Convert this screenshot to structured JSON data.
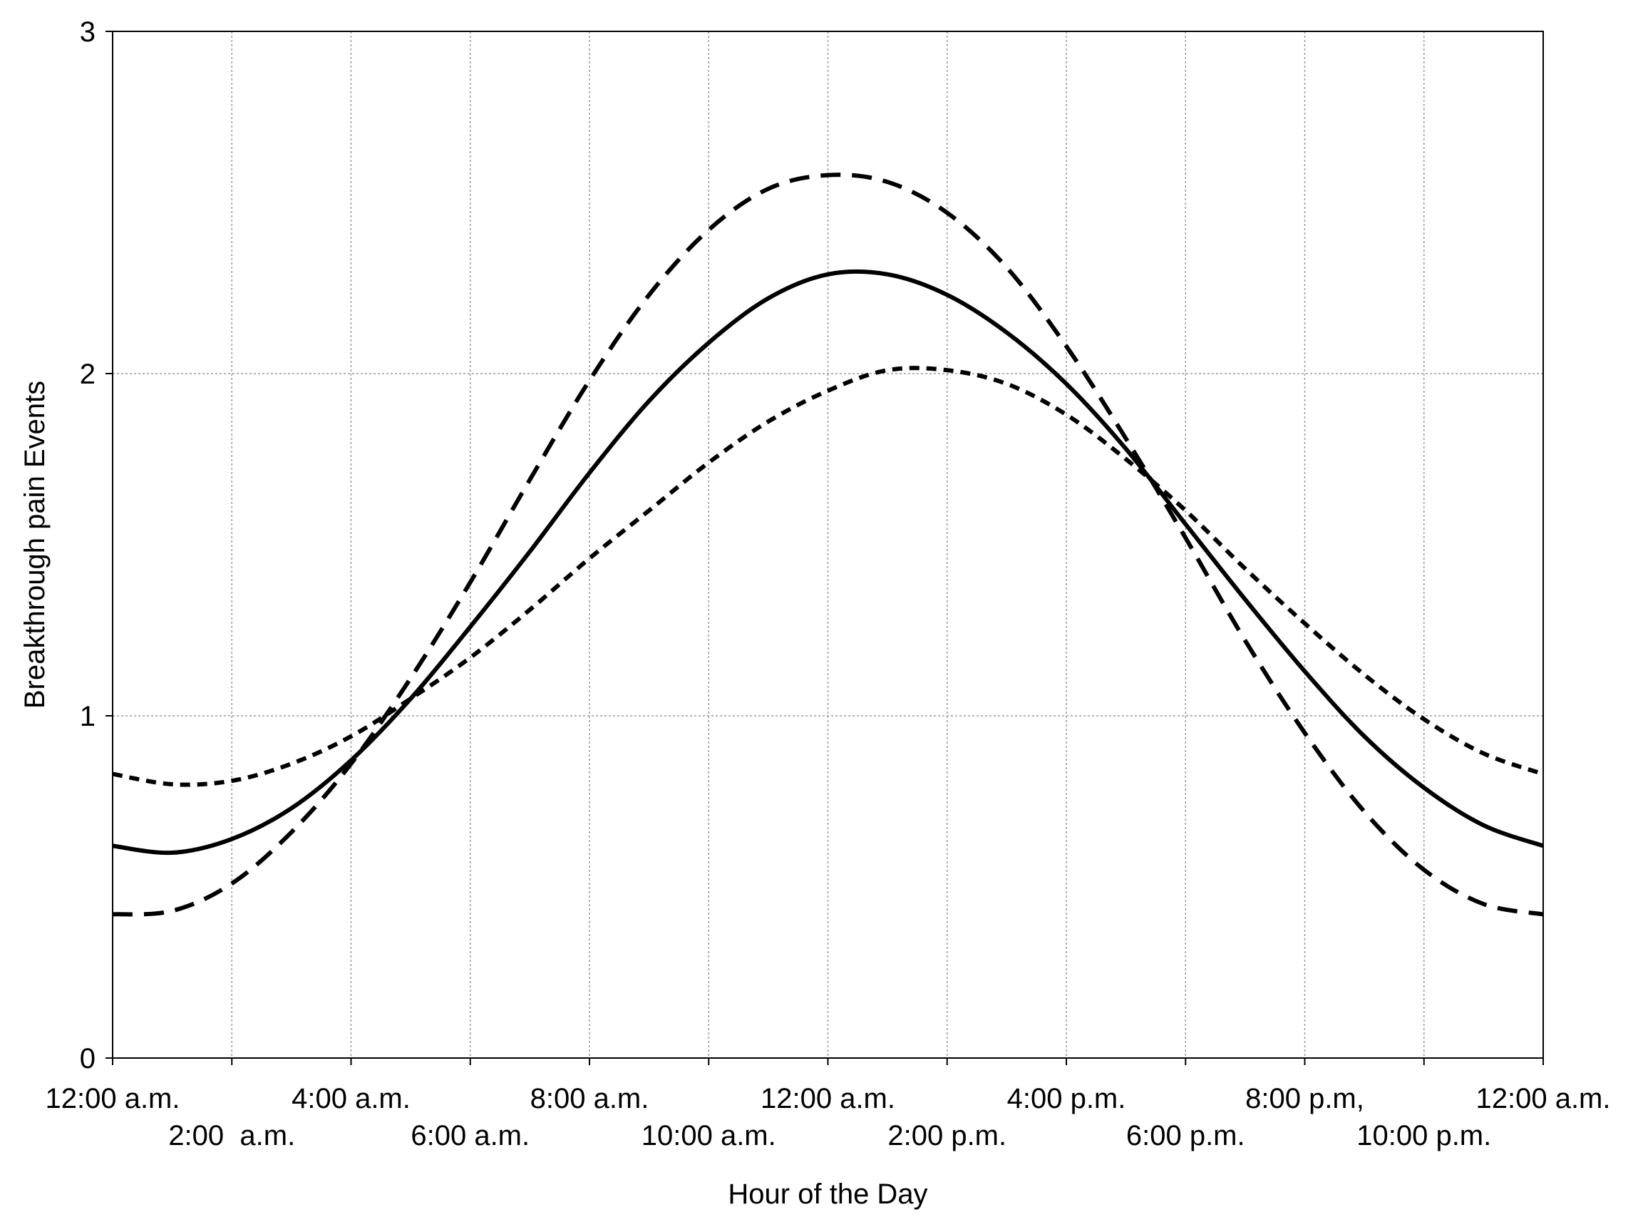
{
  "chart_data": {
    "type": "line",
    "xlabel": "Hour of the Day",
    "ylabel": "Breakthrough pain Events",
    "xlim": [
      0,
      24
    ],
    "ylim": [
      0,
      3
    ],
    "grid": true,
    "yticks": [
      {
        "value": 0,
        "label": "0"
      },
      {
        "value": 1,
        "label": "1"
      },
      {
        "value": 2,
        "label": "2"
      },
      {
        "value": 3,
        "label": "3"
      }
    ],
    "xticks": [
      {
        "value": 0,
        "label": "12:00 a.m.",
        "row": 1
      },
      {
        "value": 2,
        "label": "2:00  a.m.",
        "row": 2
      },
      {
        "value": 4,
        "label": "4:00 a.m.",
        "row": 1
      },
      {
        "value": 6,
        "label": "6:00 a.m.",
        "row": 2
      },
      {
        "value": 8,
        "label": "8:00 a.m.",
        "row": 1
      },
      {
        "value": 10,
        "label": "10:00 a.m.",
        "row": 2
      },
      {
        "value": 12,
        "label": "12:00 a.m.",
        "row": 1
      },
      {
        "value": 14,
        "label": "2:00 p.m.",
        "row": 2
      },
      {
        "value": 16,
        "label": "4:00 p.m.",
        "row": 1
      },
      {
        "value": 18,
        "label": "6:00 p.m.",
        "row": 2
      },
      {
        "value": 20,
        "label": "8:00 p.m,",
        "row": 1
      },
      {
        "value": 22,
        "label": "10:00 p.m.",
        "row": 2
      },
      {
        "value": 24,
        "label": "12:00 a.m.",
        "row": 1
      }
    ],
    "series": [
      {
        "style": "solid",
        "color": "#000000",
        "x": [
          0,
          1,
          2,
          3,
          4,
          5,
          6,
          7,
          8,
          9,
          10,
          11,
          12,
          13,
          14,
          15,
          16,
          17,
          18,
          19,
          20,
          21,
          22,
          23,
          24
        ],
        "y": [
          0.62,
          0.6,
          0.64,
          0.73,
          0.87,
          1.05,
          1.26,
          1.48,
          1.71,
          1.92,
          2.09,
          2.22,
          2.29,
          2.29,
          2.23,
          2.12,
          1.97,
          1.78,
          1.56,
          1.34,
          1.13,
          0.94,
          0.79,
          0.68,
          0.62
        ]
      },
      {
        "style": "long-dash",
        "color": "#000000",
        "x": [
          0,
          1,
          2,
          3,
          4,
          5,
          6,
          7,
          8,
          9,
          10,
          11,
          12,
          13,
          14,
          15,
          16,
          17,
          18,
          19,
          20,
          21,
          22,
          23,
          24
        ],
        "y": [
          0.42,
          0.43,
          0.51,
          0.66,
          0.86,
          1.11,
          1.39,
          1.69,
          1.98,
          2.23,
          2.42,
          2.54,
          2.58,
          2.56,
          2.47,
          2.31,
          2.08,
          1.81,
          1.52,
          1.22,
          0.95,
          0.72,
          0.55,
          0.45,
          0.42
        ]
      },
      {
        "style": "short-dash",
        "color": "#000000",
        "x": [
          0,
          1,
          2,
          3,
          4,
          5,
          6,
          7,
          8,
          9,
          10,
          11,
          12,
          13,
          14,
          15,
          16,
          17,
          18,
          19,
          20,
          21,
          22,
          23,
          24
        ],
        "y": [
          0.83,
          0.8,
          0.81,
          0.86,
          0.94,
          1.05,
          1.17,
          1.31,
          1.46,
          1.6,
          1.74,
          1.86,
          1.95,
          2.01,
          2.01,
          1.97,
          1.88,
          1.75,
          1.6,
          1.43,
          1.27,
          1.12,
          0.99,
          0.89,
          0.83
        ]
      }
    ]
  }
}
